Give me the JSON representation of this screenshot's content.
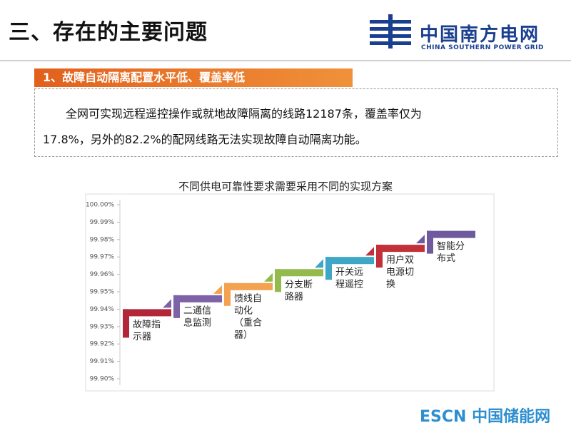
{
  "header": {
    "title": "三、存在的主要问题",
    "logo_cn": "中国南方电网",
    "logo_en": "CHINA SOUTHERN POWER GRID"
  },
  "section": {
    "heading": "1、故障自动隔离配置水平低、覆盖率低",
    "paragraph": [
      "全网可实现远程遥控操作或就地故障隔离的线路12187条，覆盖率仅为",
      "17.8%，另外的82.2%的配网线路无法实现故障自动隔离功能。"
    ]
  },
  "chart": {
    "title": "不同供电可靠性要求需要采用不同的实现方案",
    "ylim": [
      99.9,
      100
    ],
    "yticks": [
      {
        "value": 100,
        "label": "100.00%"
      },
      {
        "value": 99.99,
        "label": "99.99%"
      },
      {
        "value": 99.98,
        "label": "99.98%"
      },
      {
        "value": 99.97,
        "label": "99.97%"
      },
      {
        "value": 99.96,
        "label": "99.96%"
      },
      {
        "value": 99.95,
        "label": "99.95%"
      },
      {
        "value": 99.94,
        "label": "99.94%"
      },
      {
        "value": 99.93,
        "label": "99.93%"
      },
      {
        "value": 99.92,
        "label": "99.92%"
      },
      {
        "value": 99.91,
        "label": "99.91%"
      },
      {
        "value": 99.9,
        "label": "99.90%"
      }
    ],
    "steps": [
      {
        "lines": [
          "故障指",
          "示器"
        ],
        "value": 99.94,
        "color": "#b3263a"
      },
      {
        "lines": [
          "二通信",
          "息监测"
        ],
        "value": 99.948,
        "color": "#7e62a8"
      },
      {
        "lines": [
          "馈线自",
          "动化",
          "（重合",
          "器）"
        ],
        "value": 99.955,
        "color": "#f2a251"
      },
      {
        "lines": [
          "分支断",
          "路器"
        ],
        "value": 99.963,
        "color": "#93ba4c"
      },
      {
        "lines": [
          "开关远",
          "程遥控"
        ],
        "value": 99.97,
        "color": "#3ea6c6"
      },
      {
        "lines": [
          "用户双",
          "电源切",
          "换"
        ],
        "value": 99.977,
        "color": "#c2303a"
      },
      {
        "lines": [
          "智能分",
          "布式"
        ],
        "value": 99.985,
        "color": "#6e5a9c"
      }
    ]
  },
  "watermark": "ESCN 中国储能网"
}
